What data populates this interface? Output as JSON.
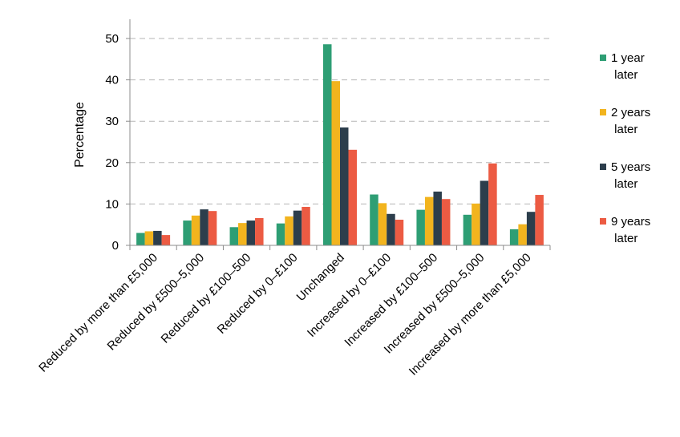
{
  "chart_data": {
    "type": "bar",
    "title": "",
    "xlabel": "",
    "ylabel": "Percentage",
    "ylim": [
      0,
      50
    ],
    "yticks": [
      0,
      10,
      20,
      30,
      40,
      50
    ],
    "grid": true,
    "legend_position": "right",
    "categories": [
      "Reduced by more than £5,000",
      "Reduced by £500–5,000",
      "Reduced by £100–500",
      "Reduced by 0–£100",
      "Unchanged",
      "Increased by 0–£100",
      "Increased by £100–500",
      "Increased by £500–5,000",
      "Increased by more than £5,000"
    ],
    "series": [
      {
        "name": "1 year later",
        "color": "#2e9e74",
        "values": [
          3.0,
          6.0,
          4.4,
          5.3,
          48.6,
          12.3,
          8.6,
          7.4,
          3.9
        ]
      },
      {
        "name": "2 years later",
        "color": "#f2b41e",
        "values": [
          3.4,
          7.2,
          5.4,
          7.0,
          39.7,
          10.2,
          11.7,
          10.1,
          5.1
        ]
      },
      {
        "name": "5 years later",
        "color": "#2c3e4c",
        "values": [
          3.5,
          8.7,
          6.0,
          8.4,
          28.5,
          7.6,
          13.0,
          15.6,
          8.1
        ]
      },
      {
        "name": "9 years later",
        "color": "#ec5b43",
        "values": [
          2.5,
          8.3,
          6.6,
          9.3,
          23.1,
          6.2,
          11.2,
          19.8,
          12.2
        ]
      }
    ]
  }
}
